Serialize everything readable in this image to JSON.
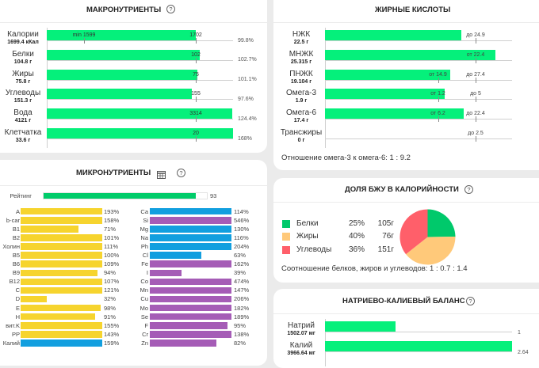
{
  "colors": {
    "bar_green": "#05f07b",
    "rating_green": "#00cc6a",
    "vitamin": "#f6d42e",
    "mineral_blue": "#129fdf",
    "mineral_purple": "#a55cb6"
  },
  "macros": {
    "title": "МАКРОНУТРИЕНТЫ",
    "help_icon": "question-circle-icon",
    "axis_max_percent": 125,
    "rows": [
      {
        "name": "Калории",
        "amount": "1699.4 кКал",
        "min_label": "min 1599",
        "norm_label": "1702",
        "percent": 99.8,
        "percent_label": "99.8%"
      },
      {
        "name": "Белки",
        "amount": "104.8 г",
        "norm_label": "102",
        "percent": 102.7,
        "percent_label": "102.7%"
      },
      {
        "name": "Жиры",
        "amount": "75.8 г",
        "norm_label": "75",
        "percent": 101.1,
        "percent_label": "101.1%"
      },
      {
        "name": "Углеводы",
        "amount": "151.3 г",
        "norm_label": "155",
        "percent": 97.6,
        "percent_label": "97.6%"
      },
      {
        "name": "Вода",
        "amount": "4121 г",
        "norm_label": "3314",
        "percent": 124.4,
        "percent_label": "124.4%"
      },
      {
        "name": "Клетчатка",
        "amount": "33.6 г",
        "norm_label": "20",
        "percent": 168,
        "percent_label": "168%"
      }
    ]
  },
  "micros": {
    "title": "МИКРОНУТРИЕНТЫ",
    "table_icon": "table-icon",
    "help_icon": "question-circle-icon",
    "rating": {
      "label": "Рейтинг",
      "value": 93,
      "max": 100,
      "value_label": "93"
    },
    "left": [
      {
        "name": "A",
        "percent": 193,
        "label": "193%",
        "color_key": "vitamin"
      },
      {
        "name": "b-car",
        "percent": 158,
        "label": "158%",
        "color_key": "vitamin"
      },
      {
        "name": "B1",
        "percent": 71,
        "label": "71%",
        "color_key": "vitamin"
      },
      {
        "name": "B2",
        "percent": 101,
        "label": "101%",
        "color_key": "vitamin"
      },
      {
        "name": "Холин",
        "percent": 111,
        "label": "111%",
        "color_key": "vitamin"
      },
      {
        "name": "B5",
        "percent": 100,
        "label": "100%",
        "color_key": "vitamin"
      },
      {
        "name": "B6",
        "percent": 109,
        "label": "109%",
        "color_key": "vitamin"
      },
      {
        "name": "B9",
        "percent": 94,
        "label": "94%",
        "color_key": "vitamin"
      },
      {
        "name": "B12",
        "percent": 107,
        "label": "107%",
        "color_key": "vitamin"
      },
      {
        "name": "C",
        "percent": 121,
        "label": "121%",
        "color_key": "vitamin"
      },
      {
        "name": "D",
        "percent": 32,
        "label": "32%",
        "color_key": "vitamin"
      },
      {
        "name": "E",
        "percent": 98,
        "label": "98%",
        "color_key": "vitamin"
      },
      {
        "name": "H",
        "percent": 91,
        "label": "91%",
        "color_key": "vitamin"
      },
      {
        "name": "вит.K",
        "percent": 155,
        "label": "155%",
        "color_key": "vitamin"
      },
      {
        "name": "PP",
        "percent": 143,
        "label": "143%",
        "color_key": "vitamin"
      },
      {
        "name": "Калий",
        "percent": 159,
        "label": "159%",
        "color_key": "mineral_blue"
      }
    ],
    "right": [
      {
        "name": "Ca",
        "percent": 114,
        "label": "114%",
        "color_key": "mineral_blue"
      },
      {
        "name": "Si",
        "percent": 546,
        "label": "546%",
        "color_key": "mineral_purple"
      },
      {
        "name": "Mg",
        "percent": 130,
        "label": "130%",
        "color_key": "mineral_blue"
      },
      {
        "name": "Na",
        "percent": 116,
        "label": "116%",
        "color_key": "mineral_blue"
      },
      {
        "name": "Ph",
        "percent": 204,
        "label": "204%",
        "color_key": "mineral_blue"
      },
      {
        "name": "Cl",
        "percent": 63,
        "label": "63%",
        "color_key": "mineral_blue"
      },
      {
        "name": "Fe",
        "percent": 162,
        "label": "162%",
        "color_key": "mineral_purple"
      },
      {
        "name": "I",
        "percent": 39,
        "label": "39%",
        "color_key": "mineral_purple"
      },
      {
        "name": "Co",
        "percent": 474,
        "label": "474%",
        "color_key": "mineral_purple"
      },
      {
        "name": "Mn",
        "percent": 147,
        "label": "147%",
        "color_key": "mineral_purple"
      },
      {
        "name": "Cu",
        "percent": 206,
        "label": "206%",
        "color_key": "mineral_purple"
      },
      {
        "name": "Mo",
        "percent": 182,
        "label": "182%",
        "color_key": "mineral_purple"
      },
      {
        "name": "Se",
        "percent": 189,
        "label": "189%",
        "color_key": "mineral_purple"
      },
      {
        "name": "F",
        "percent": 95,
        "label": "95%",
        "color_key": "mineral_purple"
      },
      {
        "name": "Cr",
        "percent": 138,
        "label": "138%",
        "color_key": "mineral_purple"
      },
      {
        "name": "Zn",
        "percent": 82,
        "label": "82%",
        "color_key": "mineral_purple"
      }
    ]
  },
  "fatty_acids": {
    "title": "ЖИРНЫЕ КИСЛОТЫ",
    "rows": [
      {
        "name": "НЖК",
        "amount": "22.5 г",
        "value": 22.5,
        "min": null,
        "max": 24.9,
        "min_label": null,
        "max_label": "до 24.9"
      },
      {
        "name": "МНЖК",
        "amount": "25.315 г",
        "value": 25.315,
        "min": 22.4,
        "max": null,
        "min_label": "от 22.4",
        "max_label": null
      },
      {
        "name": "ПНЖК",
        "amount": "19.104 г",
        "value": 19.104,
        "min": 14.9,
        "max": 27.4,
        "min_label": "от 14.9",
        "max_label": "до 27.4"
      },
      {
        "name": "Омега-3",
        "amount": "1.9 г",
        "value": 1.9,
        "min": 1.2,
        "max": 5,
        "min_label": "от 1.2",
        "max_label": "до 5"
      },
      {
        "name": "Омега-6",
        "amount": "17.4 г",
        "value": 17.4,
        "min": 6.2,
        "max": 22.4,
        "min_label": "от 6.2",
        "max_label": "до 22.4"
      },
      {
        "name": "Трансжиры",
        "amount": "0 г",
        "value": 0,
        "min": null,
        "max": 2.5,
        "min_label": null,
        "max_label": "до 2.5"
      }
    ],
    "ratio_text": "Отношение омега-3 к омега-6: 1 : 9.2"
  },
  "bju": {
    "title": "ДОЛЯ БЖУ В КАЛОРИЙНОСТИ",
    "help_icon": "question-circle-icon",
    "items": [
      {
        "key": "protein",
        "name": "Белки",
        "percent": 25,
        "percent_label": "25%",
        "grams": "105г",
        "color": "#00c96b"
      },
      {
        "key": "fat",
        "name": "Жиры",
        "percent": 40,
        "percent_label": "40%",
        "grams": "76г",
        "color": "#ffc97a"
      },
      {
        "key": "carbs",
        "name": "Углеводы",
        "percent": 36,
        "percent_label": "36%",
        "grams": "151г",
        "color": "#ff5f6a"
      }
    ],
    "ratio_text": "Соотношение белков, жиров и углеводов: 1 : 0.7 : 1.4"
  },
  "na_k": {
    "title": "НАТРИЕВО-КАЛИЕВЫЙ БАЛАНС",
    "help_icon": "question-circle-icon",
    "rows": [
      {
        "name": "Натрий",
        "amount": "1502.07 мг",
        "ratio": 1,
        "ratio_label": "1"
      },
      {
        "name": "Калий",
        "amount": "3966.64 мг",
        "ratio": 2.64,
        "ratio_label": "2.64"
      }
    ]
  }
}
